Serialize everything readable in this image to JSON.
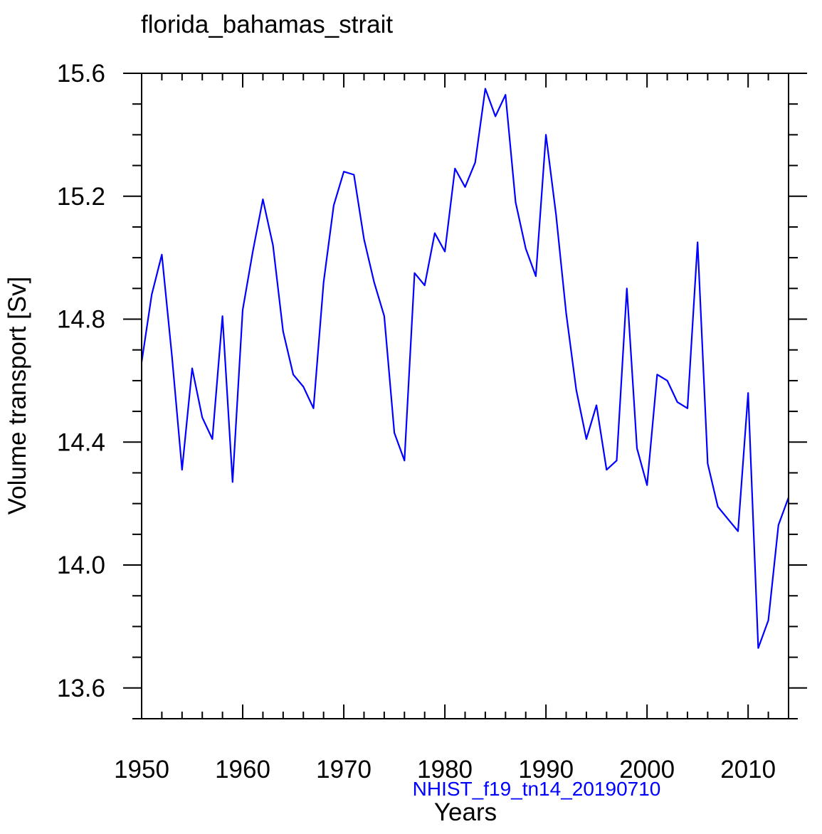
{
  "chart_data": {
    "type": "line",
    "title": "florida_bahamas_strait",
    "xlabel": "Years",
    "ylabel": "Volume transport [Sv]",
    "annotation": "NHIST_f19_tn14_20190710",
    "xlim": [
      1950,
      2014
    ],
    "ylim": [
      13.5,
      15.6
    ],
    "xticks": [
      1950,
      1960,
      1970,
      1980,
      1990,
      2000,
      2010
    ],
    "yticks": [
      13.6,
      14.0,
      14.4,
      14.8,
      15.2,
      15.6
    ],
    "ytick_labels": [
      "13.6",
      "14.0",
      "14.4",
      "14.8",
      "15.2",
      "15.6"
    ],
    "grid": false,
    "line_color": "#0000ff",
    "series": [
      {
        "name": "NHIST_f19_tn14_20190710",
        "x": [
          1950,
          1951,
          1952,
          1953,
          1954,
          1955,
          1956,
          1957,
          1958,
          1959,
          1960,
          1961,
          1962,
          1963,
          1964,
          1965,
          1966,
          1967,
          1968,
          1969,
          1970,
          1971,
          1972,
          1973,
          1974,
          1975,
          1976,
          1977,
          1978,
          1979,
          1980,
          1981,
          1982,
          1983,
          1984,
          1985,
          1986,
          1987,
          1988,
          1989,
          1990,
          1991,
          1992,
          1993,
          1994,
          1995,
          1996,
          1997,
          1998,
          1999,
          2000,
          2001,
          2002,
          2003,
          2004,
          2005,
          2006,
          2007,
          2008,
          2009,
          2010,
          2011,
          2012,
          2013,
          2014
        ],
        "values": [
          14.66,
          14.88,
          15.01,
          14.68,
          14.31,
          14.64,
          14.48,
          14.41,
          14.81,
          14.27,
          14.83,
          15.02,
          15.19,
          15.04,
          14.76,
          14.62,
          14.58,
          14.51,
          14.92,
          15.17,
          15.28,
          15.27,
          15.06,
          14.92,
          14.81,
          14.43,
          14.34,
          14.95,
          14.91,
          15.08,
          15.02,
          15.29,
          15.23,
          15.31,
          15.55,
          15.46,
          15.53,
          15.18,
          15.03,
          14.94,
          15.4,
          15.14,
          14.82,
          14.57,
          14.41,
          14.52,
          14.31,
          14.34,
          14.9,
          14.38,
          14.26,
          14.62,
          14.6,
          14.53,
          14.51,
          15.05,
          14.33,
          14.19,
          14.15,
          14.11,
          14.56,
          13.73,
          13.82,
          14.13,
          14.22
        ]
      }
    ]
  }
}
